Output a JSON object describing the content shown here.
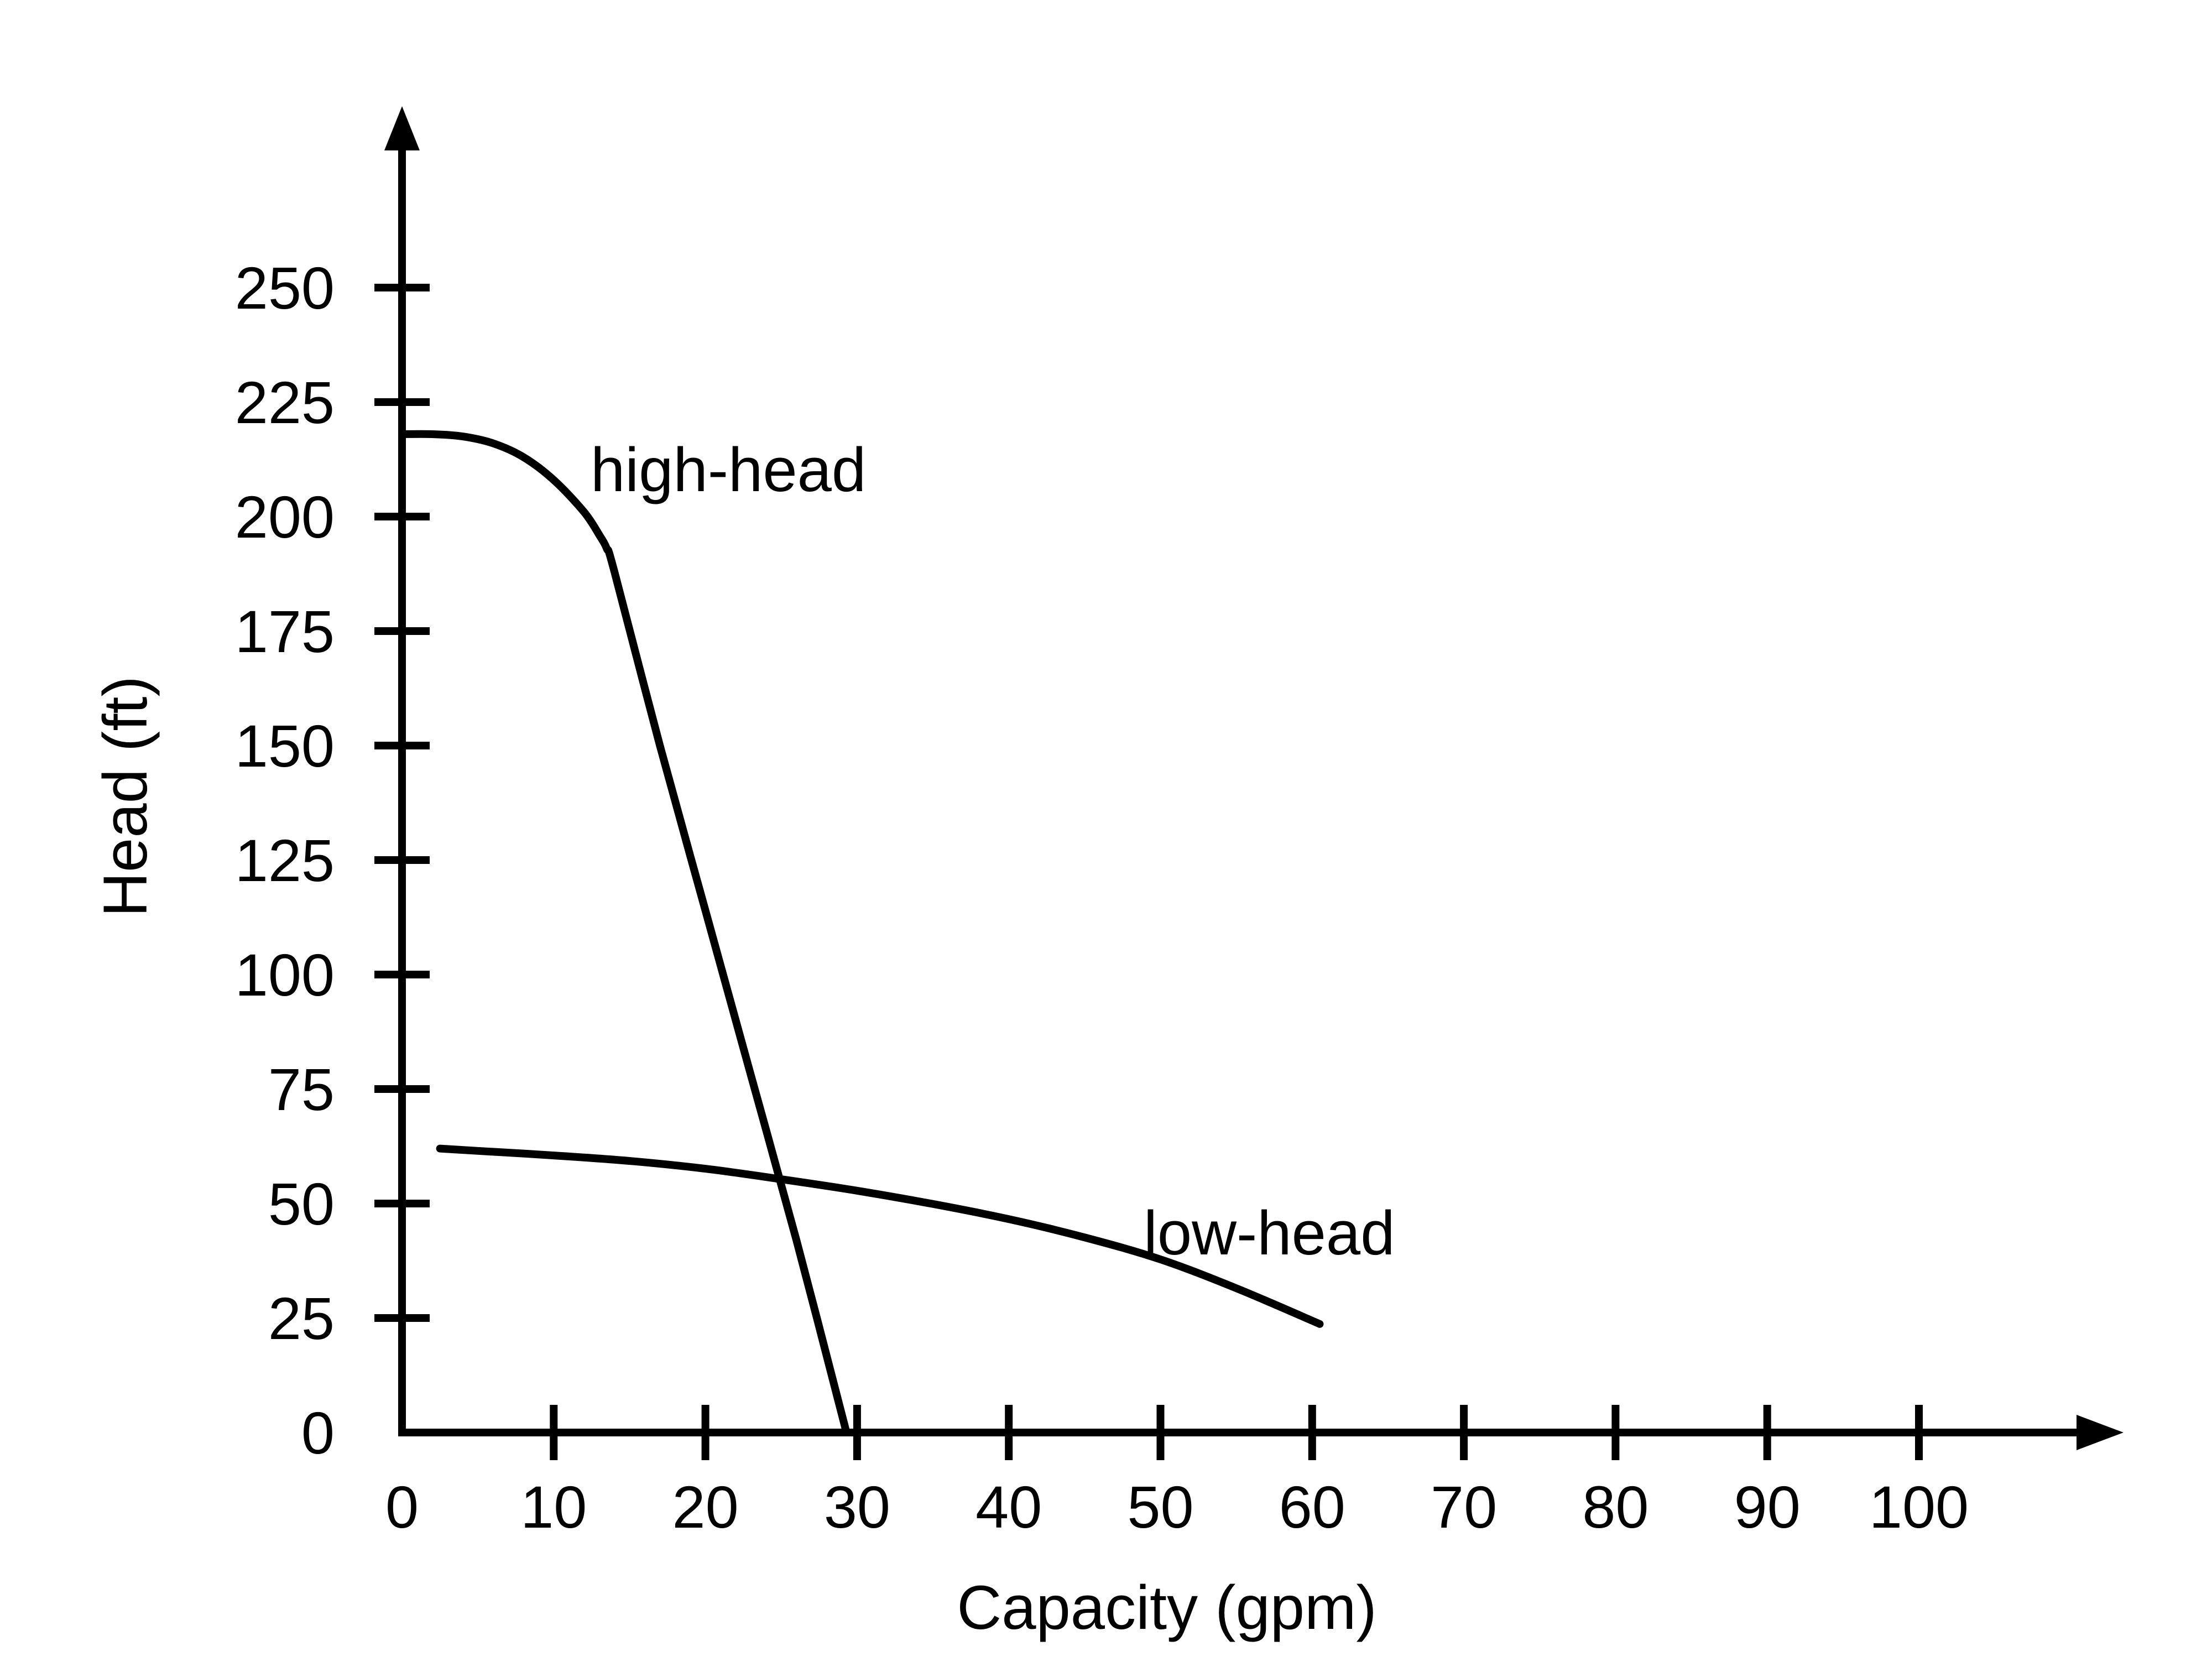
{
  "chart_data": {
    "type": "line",
    "title": "",
    "xlabel": "Capacity (gpm)",
    "ylabel": "Head (ft)",
    "xlim": [
      0,
      100
    ],
    "ylim": [
      0,
      250
    ],
    "x_ticks": [
      "0",
      "10",
      "20",
      "30",
      "40",
      "50",
      "60",
      "70",
      "80",
      "90",
      "100"
    ],
    "y_ticks": [
      "0",
      "25",
      "50",
      "75",
      "100",
      "125",
      "150",
      "175",
      "200",
      "225",
      "250"
    ],
    "grid": false,
    "legend": "none",
    "line_color": "#000000",
    "series": [
      {
        "name": "high-head",
        "x": [
          0,
          2,
          4,
          6,
          8,
          10,
          12,
          13,
          13.5,
          14,
          17,
          20,
          23,
          26,
          29.3
        ],
        "y": [
          218,
          218,
          217.5,
          216,
          213,
          208,
          201,
          196,
          193,
          188,
          150,
          114,
          78,
          42,
          0
        ]
      },
      {
        "name": "low-head",
        "x": [
          2.5,
          5,
          10,
          15,
          20,
          25,
          30,
          35,
          40,
          45,
          50,
          55,
          60.5
        ],
        "y": [
          62,
          61.5,
          60.5,
          59.3,
          57.6,
          55.3,
          52.8,
          49.9,
          46.6,
          42.6,
          37.8,
          31.5,
          23.7
        ]
      }
    ]
  }
}
